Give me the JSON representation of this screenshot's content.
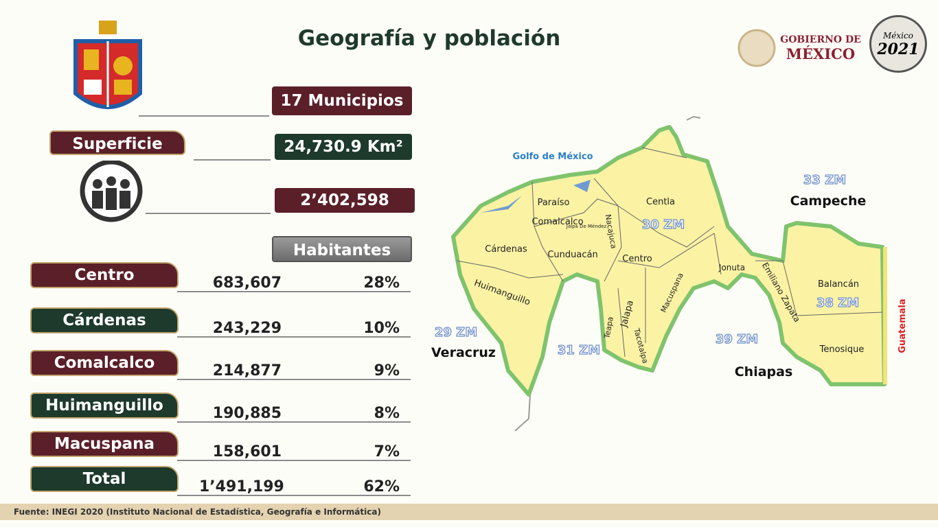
{
  "header": {
    "title": "Geografía y población"
  },
  "logos": {
    "gobierno": [
      "GOBIERNO DE",
      "MÉXICO"
    ],
    "year_badge": [
      "México",
      "2021"
    ]
  },
  "summary": {
    "municipios": "17 Municipios",
    "superficie_label": "Superficie",
    "superficie_value": "24,730.9 Km²",
    "poblacion": "2’402,598",
    "habitantes_label": "Habitantes"
  },
  "table": {
    "rows": [
      [
        "Centro",
        "683,607",
        "28%"
      ],
      [
        "Cárdenas",
        "243,229",
        "10%"
      ],
      [
        "Comalcalco",
        "214,877",
        "9%"
      ],
      [
        "Huimanguillo",
        "190,885",
        "8%"
      ],
      [
        "Macuspana",
        "158,601",
        "7%"
      ]
    ],
    "total": [
      "Total",
      "1’491,199",
      "62%"
    ]
  },
  "map": {
    "sea": "Golfo de México",
    "border": "Guatemala",
    "regions": [
      "Paraíso",
      "Comalcalco",
      "Jalpa De Méndez",
      "Nacajuca",
      "Centla",
      "Cárdenas",
      "Cunduacán",
      "Centro",
      "Huimanguillo",
      "Teapa",
      "Jalapa",
      "Tacotalpa",
      "Macuspana",
      "Jonuta",
      "Emiliano Zapata",
      "Balancán",
      "Tenosique"
    ],
    "zm": [
      "33 ZM",
      "30 ZM",
      "29 ZM",
      "31 ZM",
      "39 ZM",
      "38 ZM"
    ],
    "states": [
      "Campeche",
      "Veracruz",
      "Chiapas"
    ]
  },
  "footer": {
    "source": "Fuente:  INEGI 2020 (Instituto Nacional de Estadística, Geografía e Informática)"
  }
}
